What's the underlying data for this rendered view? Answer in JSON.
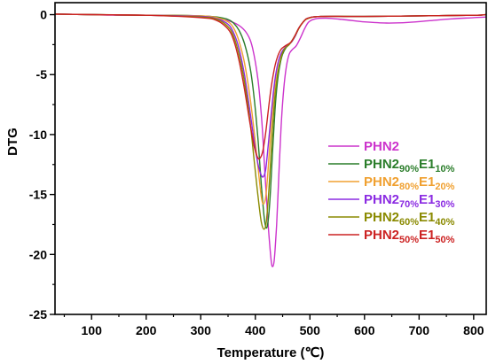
{
  "chart_data": {
    "type": "line",
    "xlabel": "Temperature (℃)",
    "ylabel": "DTG",
    "xlim": [
      33,
      823
    ],
    "ylim": [
      -25,
      1
    ],
    "x_ticks": [
      100,
      200,
      300,
      400,
      500,
      600,
      700,
      800
    ],
    "y_ticks": [
      0,
      -5,
      -10,
      -15,
      -20,
      -25
    ],
    "grid": false,
    "legend": "right",
    "series": [
      {
        "name_parts": [
          "PHN2"
        ],
        "color": "#cc33cc",
        "points": [
          [
            33,
            0.05
          ],
          [
            100,
            0.0
          ],
          [
            150,
            -0.05
          ],
          [
            200,
            -0.05
          ],
          [
            250,
            -0.1
          ],
          [
            300,
            -0.2
          ],
          [
            330,
            -0.35
          ],
          [
            350,
            -0.5
          ],
          [
            370,
            -0.9
          ],
          [
            385,
            -1.6
          ],
          [
            395,
            -2.8
          ],
          [
            405,
            -5.5
          ],
          [
            412,
            -9.0
          ],
          [
            418,
            -13.5
          ],
          [
            424,
            -17.8
          ],
          [
            429,
            -20.5
          ],
          [
            432,
            -21.0
          ],
          [
            435,
            -20.3
          ],
          [
            439,
            -17.5
          ],
          [
            443,
            -13.5
          ],
          [
            447,
            -9.5
          ],
          [
            452,
            -6.2
          ],
          [
            457,
            -4.3
          ],
          [
            462,
            -3.3
          ],
          [
            468,
            -2.9
          ],
          [
            475,
            -2.6
          ],
          [
            482,
            -2.0
          ],
          [
            490,
            -1.2
          ],
          [
            498,
            -0.6
          ],
          [
            510,
            -0.35
          ],
          [
            530,
            -0.3
          ],
          [
            560,
            -0.4
          ],
          [
            600,
            -0.6
          ],
          [
            640,
            -0.7
          ],
          [
            680,
            -0.65
          ],
          [
            720,
            -0.5
          ],
          [
            760,
            -0.35
          ],
          [
            800,
            -0.25
          ],
          [
            822,
            -0.2
          ]
        ]
      },
      {
        "name_parts": [
          "PHN2",
          "90%",
          "E1",
          "10%"
        ],
        "color": "#2a7d2a",
        "points": [
          [
            33,
            0.05
          ],
          [
            100,
            0.0
          ],
          [
            200,
            -0.05
          ],
          [
            250,
            -0.05
          ],
          [
            300,
            -0.1
          ],
          [
            330,
            -0.2
          ],
          [
            350,
            -0.4
          ],
          [
            360,
            -0.7
          ],
          [
            370,
            -1.3
          ],
          [
            380,
            -2.4
          ],
          [
            390,
            -4.3
          ],
          [
            398,
            -7.0
          ],
          [
            405,
            -10.5
          ],
          [
            411,
            -14.2
          ],
          [
            416,
            -16.8
          ],
          [
            420,
            -17.8
          ],
          [
            424,
            -17.0
          ],
          [
            428,
            -14.5
          ],
          [
            432,
            -11.0
          ],
          [
            436,
            -8.0
          ],
          [
            440,
            -5.8
          ],
          [
            445,
            -4.2
          ],
          [
            450,
            -3.3
          ],
          [
            457,
            -2.7
          ],
          [
            465,
            -2.3
          ],
          [
            472,
            -1.8
          ],
          [
            480,
            -1.1
          ],
          [
            488,
            -0.6
          ],
          [
            496,
            -0.3
          ],
          [
            520,
            -0.15
          ],
          [
            600,
            -0.15
          ],
          [
            700,
            -0.1
          ],
          [
            800,
            -0.05
          ],
          [
            822,
            0.0
          ]
        ]
      },
      {
        "name_parts": [
          "PHN2",
          "80%",
          "E1",
          "20%"
        ],
        "color": "#f0a030",
        "points": [
          [
            33,
            0.05
          ],
          [
            100,
            0.0
          ],
          [
            200,
            -0.05
          ],
          [
            300,
            -0.1
          ],
          [
            330,
            -0.25
          ],
          [
            350,
            -0.6
          ],
          [
            360,
            -1.1
          ],
          [
            370,
            -2.2
          ],
          [
            380,
            -4.0
          ],
          [
            390,
            -6.8
          ],
          [
            398,
            -9.8
          ],
          [
            405,
            -12.8
          ],
          [
            411,
            -15.2
          ],
          [
            415,
            -15.8
          ],
          [
            419,
            -15.2
          ],
          [
            423,
            -13.2
          ],
          [
            427,
            -10.5
          ],
          [
            432,
            -7.6
          ],
          [
            437,
            -5.4
          ],
          [
            442,
            -4.0
          ],
          [
            448,
            -3.2
          ],
          [
            455,
            -2.7
          ],
          [
            465,
            -2.3
          ],
          [
            472,
            -1.8
          ],
          [
            480,
            -1.1
          ],
          [
            488,
            -0.6
          ],
          [
            496,
            -0.3
          ],
          [
            520,
            -0.15
          ],
          [
            600,
            -0.15
          ],
          [
            700,
            -0.1
          ],
          [
            800,
            -0.05
          ],
          [
            822,
            0.0
          ]
        ]
      },
      {
        "name_parts": [
          "PHN2",
          "70%",
          "E1",
          "30%"
        ],
        "color": "#8b2be2",
        "points": [
          [
            33,
            0.05
          ],
          [
            100,
            0.0
          ],
          [
            200,
            -0.05
          ],
          [
            300,
            -0.15
          ],
          [
            330,
            -0.35
          ],
          [
            350,
            -0.8
          ],
          [
            360,
            -1.5
          ],
          [
            370,
            -2.8
          ],
          [
            380,
            -5.0
          ],
          [
            390,
            -8.0
          ],
          [
            398,
            -10.6
          ],
          [
            405,
            -12.5
          ],
          [
            411,
            -13.4
          ],
          [
            415,
            -13.5
          ],
          [
            419,
            -12.9
          ],
          [
            423,
            -11.2
          ],
          [
            428,
            -8.8
          ],
          [
            433,
            -6.5
          ],
          [
            438,
            -4.8
          ],
          [
            444,
            -3.6
          ],
          [
            450,
            -3.0
          ],
          [
            458,
            -2.6
          ],
          [
            466,
            -2.3
          ],
          [
            473,
            -1.8
          ],
          [
            480,
            -1.1
          ],
          [
            488,
            -0.6
          ],
          [
            496,
            -0.3
          ],
          [
            520,
            -0.15
          ],
          [
            600,
            -0.15
          ],
          [
            700,
            -0.1
          ],
          [
            800,
            -0.05
          ],
          [
            822,
            0.0
          ]
        ]
      },
      {
        "name_parts": [
          "PHN2",
          "60%",
          "E1",
          "40%"
        ],
        "color": "#8a8a00",
        "points": [
          [
            33,
            0.05
          ],
          [
            100,
            0.0
          ],
          [
            200,
            -0.05
          ],
          [
            300,
            -0.2
          ],
          [
            330,
            -0.4
          ],
          [
            350,
            -1.0
          ],
          [
            360,
            -1.8
          ],
          [
            370,
            -3.3
          ],
          [
            380,
            -5.6
          ],
          [
            390,
            -8.8
          ],
          [
            398,
            -12.2
          ],
          [
            405,
            -15.2
          ],
          [
            411,
            -17.3
          ],
          [
            416,
            -17.9
          ],
          [
            420,
            -17.3
          ],
          [
            424,
            -15.2
          ],
          [
            428,
            -12.2
          ],
          [
            432,
            -9.2
          ],
          [
            436,
            -6.8
          ],
          [
            441,
            -4.9
          ],
          [
            447,
            -3.6
          ],
          [
            453,
            -2.9
          ],
          [
            462,
            -2.5
          ],
          [
            470,
            -2.0
          ],
          [
            478,
            -1.3
          ],
          [
            486,
            -0.7
          ],
          [
            495,
            -0.35
          ],
          [
            520,
            -0.15
          ],
          [
            600,
            -0.15
          ],
          [
            700,
            -0.1
          ],
          [
            800,
            -0.05
          ],
          [
            822,
            0.0
          ]
        ]
      },
      {
        "name_parts": [
          "PHN2",
          "50%",
          "E1",
          "50%"
        ],
        "color": "#cc2222",
        "points": [
          [
            33,
            0.05
          ],
          [
            100,
            0.0
          ],
          [
            200,
            -0.05
          ],
          [
            300,
            -0.25
          ],
          [
            330,
            -0.5
          ],
          [
            350,
            -1.2
          ],
          [
            360,
            -2.1
          ],
          [
            370,
            -3.8
          ],
          [
            380,
            -6.2
          ],
          [
            390,
            -9.0
          ],
          [
            398,
            -11.0
          ],
          [
            404,
            -11.9
          ],
          [
            408,
            -12.0
          ],
          [
            413,
            -11.5
          ],
          [
            418,
            -10.2
          ],
          [
            423,
            -8.3
          ],
          [
            428,
            -6.4
          ],
          [
            434,
            -4.7
          ],
          [
            440,
            -3.6
          ],
          [
            447,
            -2.9
          ],
          [
            455,
            -2.6
          ],
          [
            465,
            -2.3
          ],
          [
            472,
            -1.8
          ],
          [
            480,
            -1.1
          ],
          [
            488,
            -0.6
          ],
          [
            496,
            -0.3
          ],
          [
            520,
            -0.15
          ],
          [
            600,
            -0.15
          ],
          [
            700,
            -0.1
          ],
          [
            800,
            -0.05
          ],
          [
            822,
            0.0
          ]
        ]
      }
    ]
  }
}
